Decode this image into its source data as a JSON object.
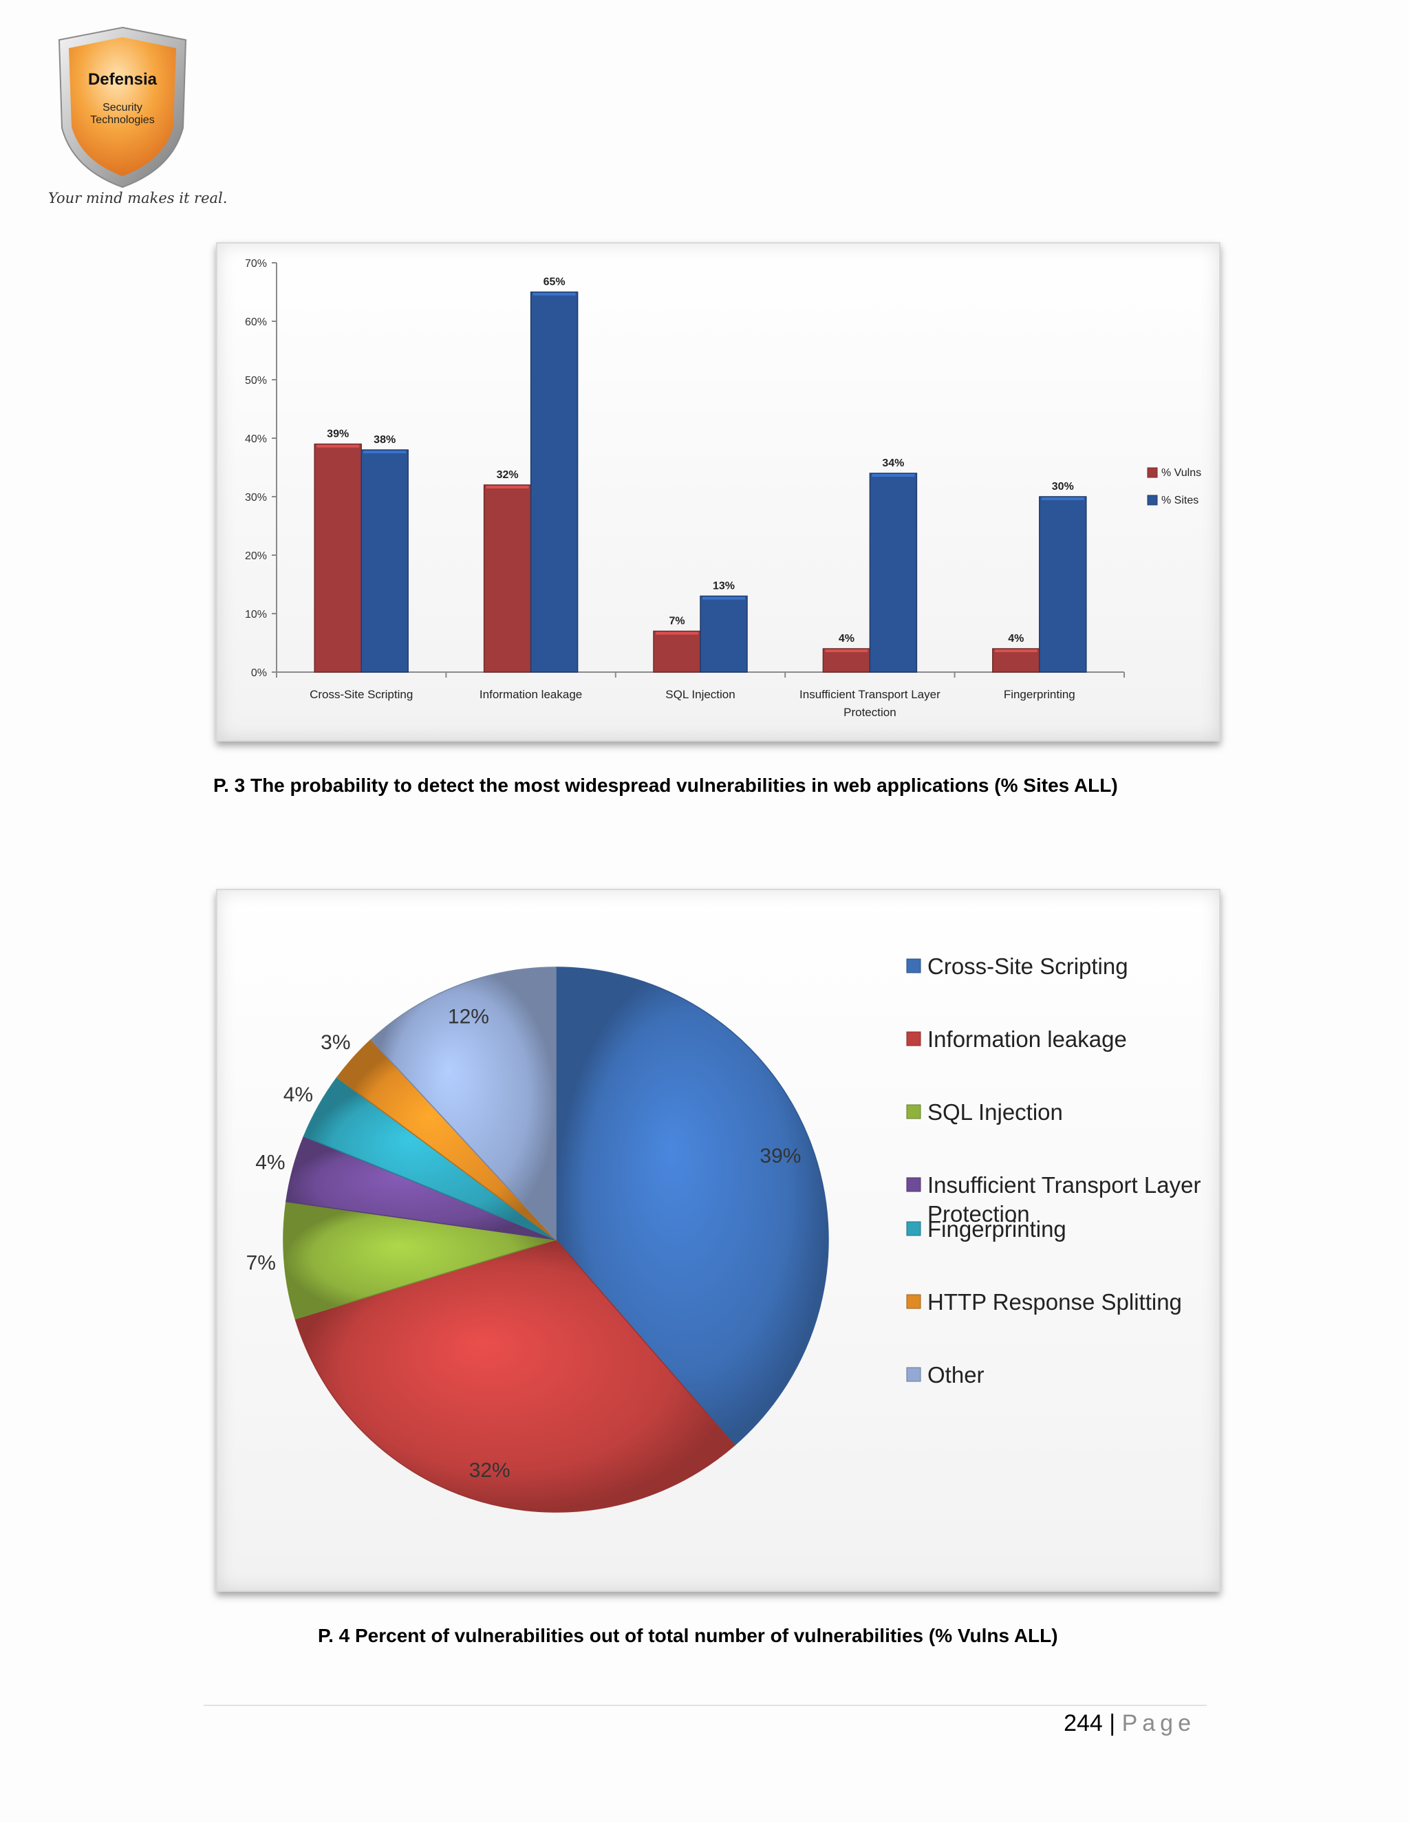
{
  "logo": {
    "name": "Defensia",
    "subtitle_line1": "Security",
    "subtitle_line2": "Technologies",
    "tagline": "Your mind makes it real."
  },
  "captions": {
    "p3": "P. 3 The probability to detect the most widespread vulnerabilities in web applications (% Sites ALL)",
    "p4": "P. 4 Percent of vulnerabilities out of total number of vulnerabilities (% Vulns ALL)"
  },
  "footer": {
    "page_number": "244",
    "separator": "|",
    "page_word": "Page"
  },
  "chart_data": [
    {
      "type": "bar",
      "categories": [
        "Cross-Site Scripting",
        "Information leakage",
        "SQL Injection",
        "Insufficient Transport Layer Protection",
        "Fingerprinting"
      ],
      "category_lines": [
        [
          "Cross-Site Scripting"
        ],
        [
          "Information leakage"
        ],
        [
          "SQL Injection"
        ],
        [
          "Insufficient Transport Layer",
          "Protection"
        ],
        [
          "Fingerprinting"
        ]
      ],
      "series": [
        {
          "name": "% Vulns",
          "values": [
            39,
            32,
            7,
            4,
            4
          ],
          "labels": [
            "39%",
            "32%",
            "7%",
            "4%",
            "4%"
          ],
          "color": "#a23b3b"
        },
        {
          "name": "% Sites",
          "values": [
            38,
            65,
            13,
            34,
            30
          ],
          "labels": [
            "38%",
            "65%",
            "13%",
            "34%",
            "30%"
          ],
          "color": "#2b5597"
        }
      ],
      "ylim": [
        0,
        70
      ],
      "yticks": [
        "0%",
        "10%",
        "20%",
        "30%",
        "40%",
        "50%",
        "60%",
        "70%"
      ],
      "title": "",
      "xlabel": "",
      "ylabel": "",
      "legend_position": "right",
      "grid": false
    },
    {
      "type": "pie",
      "slices": [
        {
          "name": "Cross-Site Scripting",
          "value": 39,
          "label": "39%",
          "color": "#3d6fb6"
        },
        {
          "name": "Information leakage",
          "value": 32,
          "label": "32%",
          "color": "#c0403e"
        },
        {
          "name": "SQL Injection",
          "value": 7,
          "label": "7%",
          "color": "#8fb23d"
        },
        {
          "name": "Insufficient Transport Layer Protection",
          "value": 4,
          "label": "4%",
          "color": "#6e4b96"
        },
        {
          "name": "Fingerprinting",
          "value": 4,
          "label": "4%",
          "color": "#2fa3b9"
        },
        {
          "name": "HTTP Response Splitting",
          "value": 3,
          "label": "3%",
          "color": "#e08a24"
        },
        {
          "name": "Other",
          "value": 12,
          "label": "12%",
          "color": "#93a9d4"
        }
      ],
      "legend_lines": [
        [
          "Cross-Site Scripting"
        ],
        [
          "Information leakage"
        ],
        [
          "SQL Injection"
        ],
        [
          "Insufficient Transport Layer",
          "Protection"
        ],
        [
          "Fingerprinting"
        ],
        [
          "HTTP Response Splitting"
        ],
        [
          "Other"
        ]
      ],
      "title": "",
      "legend_position": "right"
    }
  ]
}
